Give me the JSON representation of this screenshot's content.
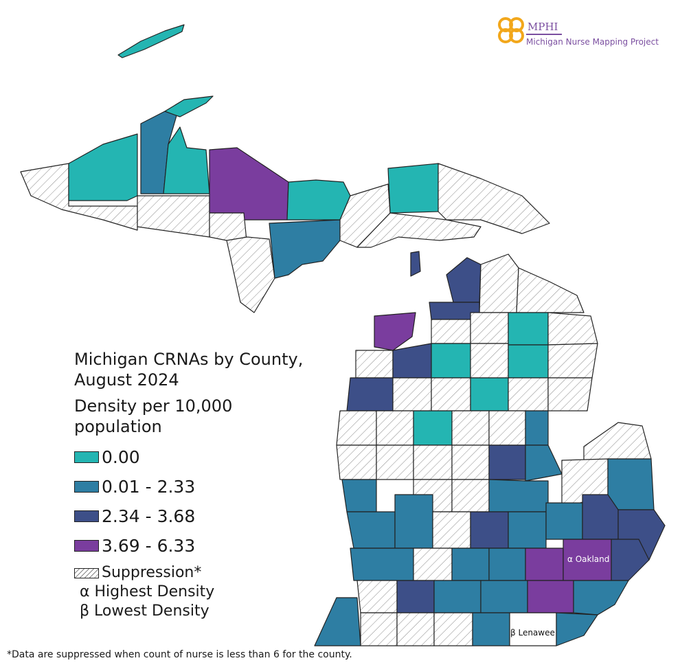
{
  "logo": {
    "abbreviation": "MPHI",
    "project_name": "Michigan Nurse Mapping Project",
    "color": "#7b4fa0",
    "mark_color": "#f2a71b"
  },
  "legend": {
    "title_line1": "Michigan CRNAs by County,",
    "title_line2": "August 2024",
    "subtitle_line1": "Density per 10,000",
    "subtitle_line2": "population",
    "classes": [
      {
        "label": "0.00",
        "color": "#24b5b2"
      },
      {
        "label": "0.01 - 2.33",
        "color": "#2e7ea3"
      },
      {
        "label": "2.34 - 3.68",
        "color": "#3d4f88"
      },
      {
        "label": "3.69 - 6.33",
        "color": "#7a3d9e"
      }
    ],
    "suppression_label": "Suppression*",
    "highest_label": "α Highest Density",
    "lowest_label": "β Lowest Density"
  },
  "annotations": {
    "highest": "α Oakland",
    "lowest": "β Lenawee"
  },
  "footnote": "*Data are suppressed when count of nurse is less than 6 for the county."
}
